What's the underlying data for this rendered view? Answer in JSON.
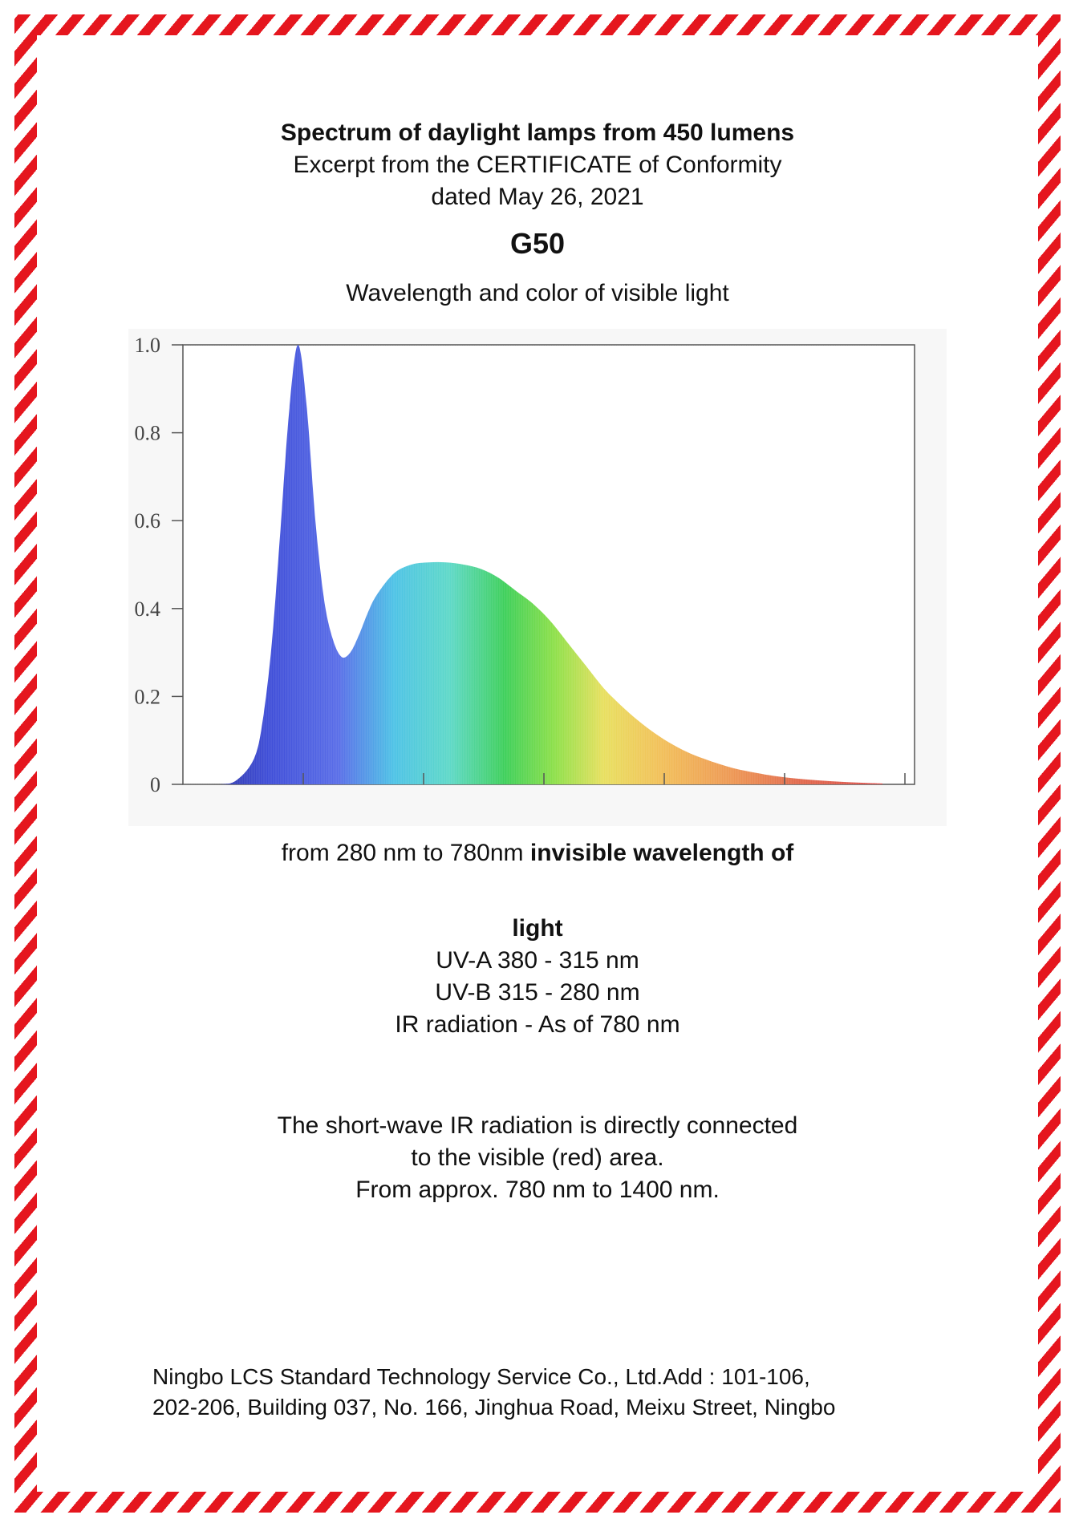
{
  "heading": {
    "title": "Spectrum of daylight lamps from 450 lumens",
    "excerpt": "Excerpt from the CERTIFICATE of Conformity",
    "date": "dated May 26, 2021",
    "model": "G50",
    "subtitle": "Wavelength and color of visible light"
  },
  "chart_data": {
    "type": "area",
    "title": "",
    "xlabel": "",
    "ylabel": "",
    "xlim": [
      380,
      780
    ],
    "ylim": [
      0,
      1.0
    ],
    "y_ticks": [
      "0",
      "0.2",
      "0.4",
      "0.6",
      "0.8",
      "1.0"
    ],
    "x_ticks": [],
    "grid": false,
    "fill": "spectral rainbow gradient by wavelength",
    "x": [
      380,
      400,
      410,
      420,
      425,
      430,
      435,
      440,
      445,
      450,
      455,
      460,
      465,
      470,
      475,
      480,
      485,
      490,
      500,
      510,
      520,
      530,
      540,
      550,
      560,
      570,
      580,
      590,
      600,
      610,
      620,
      630,
      640,
      650,
      660,
      670,
      680,
      690,
      700,
      720,
      740,
      760,
      780
    ],
    "values": [
      0.0,
      0.0,
      0.01,
      0.06,
      0.15,
      0.32,
      0.58,
      0.85,
      1.0,
      0.86,
      0.6,
      0.42,
      0.33,
      0.29,
      0.3,
      0.34,
      0.39,
      0.43,
      0.48,
      0.5,
      0.505,
      0.505,
      0.5,
      0.49,
      0.47,
      0.44,
      0.41,
      0.37,
      0.32,
      0.27,
      0.22,
      0.18,
      0.145,
      0.115,
      0.09,
      0.07,
      0.055,
      0.042,
      0.032,
      0.018,
      0.01,
      0.005,
      0.002
    ]
  },
  "wavelength": {
    "range_text": "from 280 nm to 780nm ",
    "range_bold": "invisible wavelength of",
    "range_bold_cont": "light",
    "uva": "UV-A 380 - 315 nm",
    "uvb": "UV-B 315 - 280 nm",
    "ir": "IR radiation  - As of 780 nm"
  },
  "note": {
    "line1": "The short-wave IR radiation is directly connected",
    "line2": "to the visible (red) area.",
    "line3": "From approx. 780 nm to 1400 nm."
  },
  "address": {
    "line1": "Ningbo LCS Standard Technology Service Co., Ltd.Add : 101-106,",
    "line2": "202-206, Building 037, No. 166, Jinghua Road, Meixu Street, Ningbo"
  },
  "colors": {
    "border_red": "#e5161e",
    "axis": "#555555"
  }
}
